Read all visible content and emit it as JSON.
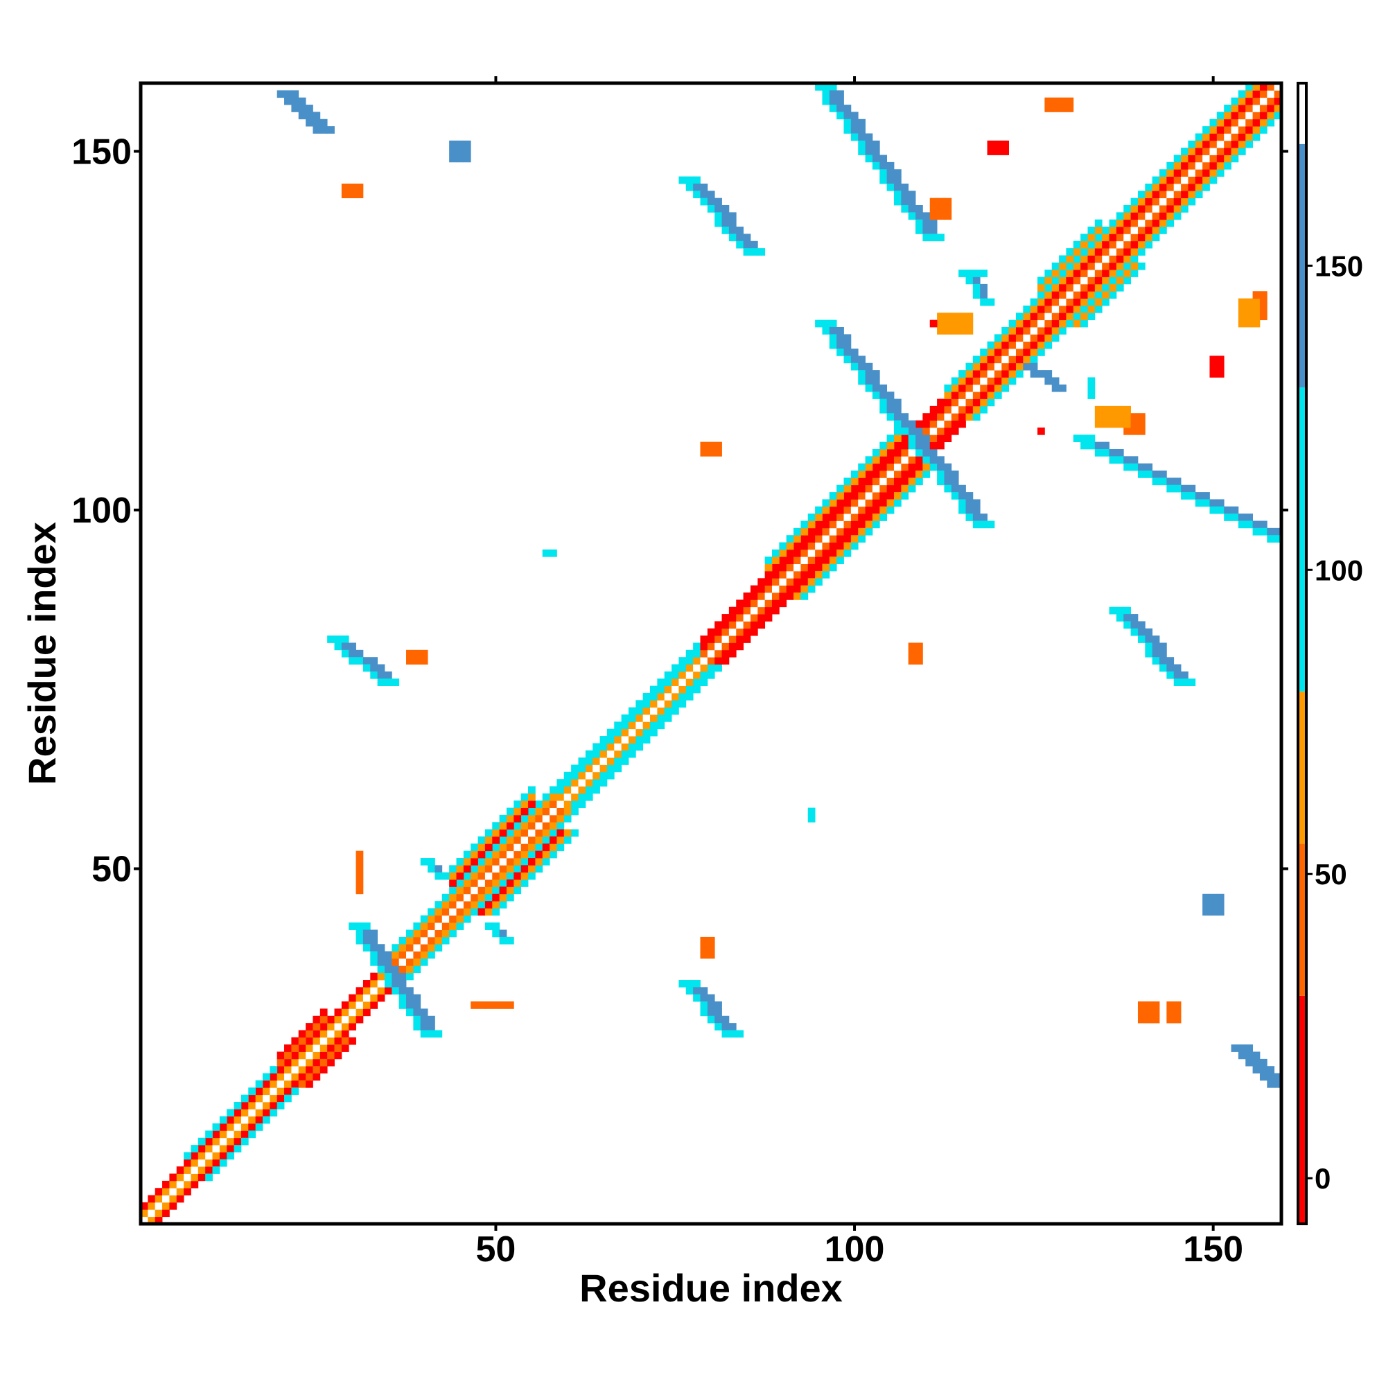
{
  "chart_data": {
    "type": "heatmap",
    "title": "",
    "xlabel": "Residue index",
    "ylabel": "Residue index",
    "xlim": [
      0.5,
      159.5
    ],
    "ylim": [
      0.5,
      159.5
    ],
    "x_ticks": [
      50,
      100,
      150
    ],
    "y_ticks": [
      50,
      100,
      150
    ],
    "colorbar": {
      "range": [
        -7.5,
        180
      ],
      "ticks": [
        0,
        50,
        100,
        150
      ],
      "bands": [
        {
          "from": -7.5,
          "to": 30,
          "color": "#ff0000"
        },
        {
          "from": 30,
          "to": 55,
          "color": "#ff6600"
        },
        {
          "from": 55,
          "to": 80,
          "color": "#ff9900"
        },
        {
          "from": 80,
          "to": 130,
          "color": "#00e5ee"
        },
        {
          "from": 130,
          "to": 170,
          "color": "#4a90c8"
        },
        {
          "from": 170,
          "to": 180,
          "color": "#ffffff"
        }
      ]
    },
    "regions": [
      {
        "kind": "diag",
        "from": 1,
        "to": 34,
        "offsets": [
          [
            0,
            "#ffffff"
          ],
          [
            1,
            "#ff9900"
          ],
          [
            2,
            "#ff0000"
          ]
        ]
      },
      {
        "kind": "diag",
        "from": 7,
        "to": 19,
        "offsets": [
          [
            3,
            "#00e5ee"
          ]
        ]
      },
      {
        "kind": "diag",
        "from": 20,
        "to": 26,
        "offsets": [
          [
            3,
            "#ff6600"
          ],
          [
            4,
            "#ff0000"
          ]
        ]
      },
      {
        "kind": "diag",
        "from": 35,
        "to": 58,
        "offsets": [
          [
            0,
            "#ffffff"
          ],
          [
            1,
            "#ff6600"
          ],
          [
            2,
            "#ff9900"
          ],
          [
            3,
            "#00e5ee"
          ]
        ]
      },
      {
        "kind": "diag",
        "from": 44,
        "to": 55,
        "offsets": [
          [
            4,
            "#ff0000"
          ],
          [
            5,
            "#ff9900"
          ],
          [
            6,
            "#00e5ee"
          ]
        ]
      },
      {
        "kind": "diag",
        "from": 59,
        "to": 78,
        "offsets": [
          [
            0,
            "#ffffff"
          ],
          [
            1,
            "#ff9900"
          ],
          [
            2,
            "#00e5ee"
          ],
          [
            3,
            "#00e5ee"
          ]
        ]
      },
      {
        "kind": "diag",
        "from": 79,
        "to": 112,
        "offsets": [
          [
            0,
            "#ffffff"
          ],
          [
            1,
            "#ff6600"
          ],
          [
            2,
            "#ff0000"
          ],
          [
            3,
            "#ff0000"
          ]
        ]
      },
      {
        "kind": "diag",
        "from": 88,
        "to": 106,
        "offsets": [
          [
            4,
            "#ff9900"
          ],
          [
            5,
            "#00e5ee"
          ]
        ]
      },
      {
        "kind": "diag",
        "from": 113,
        "to": 160,
        "offsets": [
          [
            0,
            "#ffffff"
          ],
          [
            1,
            "#ff6600"
          ],
          [
            2,
            "#ff0000"
          ],
          [
            3,
            "#ff9900"
          ],
          [
            4,
            "#00e5ee"
          ]
        ]
      },
      {
        "kind": "diag",
        "from": 126,
        "to": 134,
        "offsets": [
          [
            5,
            "#ff9900"
          ],
          [
            6,
            "#00e5ee"
          ]
        ]
      },
      {
        "kind": "anti",
        "i1": 30,
        "j1": 42,
        "i2": 40,
        "j2": 27,
        "width": 3,
        "color": "#4a90c8",
        "edge": "#00e5ee"
      },
      {
        "kind": "anti",
        "i1": 95,
        "j1": 126,
        "i2": 117,
        "j2": 98,
        "width": 3,
        "color": "#4a90c8",
        "edge": "#00e5ee"
      },
      {
        "kind": "anti",
        "i1": 131,
        "j1": 110,
        "i2": 158,
        "j2": 96,
        "width": 3,
        "color": "#4a90c8",
        "edge": "#00e5ee"
      },
      {
        "kind": "anti",
        "i1": 95,
        "j1": 159,
        "i2": 110,
        "j2": 138,
        "width": 3,
        "color": "#4a90c8",
        "edge": "#00e5ee"
      },
      {
        "kind": "anti",
        "i1": 76,
        "j1": 146,
        "i2": 85,
        "j2": 136,
        "width": 3,
        "color": "#4a90c8",
        "edge": "#00e5ee"
      },
      {
        "kind": "anti",
        "i1": 136,
        "j1": 86,
        "i2": 145,
        "j2": 76,
        "width": 3,
        "color": "#4a90c8",
        "edge": "#00e5ee"
      },
      {
        "kind": "anti",
        "i1": 27,
        "j1": 82,
        "i2": 34,
        "j2": 76,
        "width": 3,
        "color": "#4a90c8",
        "edge": "#00e5ee"
      },
      {
        "kind": "anti",
        "i1": 76,
        "j1": 34,
        "i2": 82,
        "j2": 27,
        "width": 3,
        "color": "#4a90c8",
        "edge": "#00e5ee"
      },
      {
        "kind": "anti",
        "i1": 20,
        "j1": 158,
        "i2": 25,
        "j2": 153,
        "width": 3,
        "color": "#4a90c8",
        "edge": "#4a90c8"
      },
      {
        "kind": "anti",
        "i1": 153,
        "j1": 25,
        "i2": 158,
        "j2": 20,
        "width": 3,
        "color": "#4a90c8",
        "edge": "#4a90c8"
      },
      {
        "kind": "anti",
        "i1": 115,
        "j1": 133,
        "i2": 118,
        "j2": 129,
        "width": 2,
        "color": "#4a90c8",
        "edge": "#00e5ee"
      },
      {
        "kind": "anti",
        "i1": 124,
        "j1": 120,
        "i2": 128,
        "j2": 117,
        "width": 2,
        "color": "#4a90c8",
        "edge": "#4a90c8"
      },
      {
        "kind": "anti",
        "i1": 40,
        "j1": 51,
        "i2": 42,
        "j2": 49,
        "width": 2,
        "color": "#4a90c8",
        "edge": "#00e5ee"
      },
      {
        "kind": "anti",
        "i1": 49,
        "j1": 42,
        "i2": 51,
        "j2": 40,
        "width": 2,
        "color": "#4a90c8",
        "edge": "#00e5ee"
      },
      {
        "kind": "block",
        "i1": 44,
        "i2": 46,
        "j1": 149,
        "j2": 151,
        "color": "#4a90c8"
      },
      {
        "kind": "block",
        "i1": 149,
        "i2": 151,
        "j1": 44,
        "j2": 46,
        "color": "#4a90c8"
      },
      {
        "kind": "block",
        "i1": 29,
        "i2": 31,
        "j1": 144,
        "j2": 145,
        "color": "#ff6600"
      },
      {
        "kind": "block",
        "i1": 144,
        "i2": 145,
        "j1": 29,
        "j2": 31,
        "color": "#ff6600"
      },
      {
        "kind": "block",
        "i1": 38,
        "i2": 40,
        "j1": 79,
        "j2": 80,
        "color": "#ff6600"
      },
      {
        "kind": "block",
        "i1": 79,
        "i2": 80,
        "j1": 38,
        "j2": 40,
        "color": "#ff6600"
      },
      {
        "kind": "block",
        "i1": 79,
        "i2": 81,
        "j1": 108,
        "j2": 109,
        "color": "#ff6600"
      },
      {
        "kind": "block",
        "i1": 108,
        "i2": 109,
        "j1": 79,
        "j2": 81,
        "color": "#ff6600"
      },
      {
        "kind": "block",
        "i1": 127,
        "i2": 130,
        "j1": 156,
        "j2": 157,
        "color": "#ff6600"
      },
      {
        "kind": "block",
        "i1": 156,
        "i2": 157,
        "j1": 127,
        "j2": 130,
        "color": "#ff6600"
      },
      {
        "kind": "block",
        "i1": 140,
        "i2": 142,
        "j1": 29,
        "j2": 31,
        "color": "#ff6600"
      },
      {
        "kind": "block",
        "i1": 154,
        "i2": 156,
        "j1": 126,
        "j2": 129,
        "color": "#ff9900"
      },
      {
        "kind": "block",
        "i1": 111,
        "i2": 113,
        "j1": 141,
        "j2": 143,
        "color": "#ff6600"
      },
      {
        "kind": "block",
        "i1": 138,
        "i2": 140,
        "j1": 111,
        "j2": 113,
        "color": "#ff6600"
      },
      {
        "kind": "block",
        "i1": 112,
        "i2": 116,
        "j1": 125,
        "j2": 127,
        "color": "#ff9900"
      },
      {
        "kind": "block",
        "i1": 134,
        "i2": 138,
        "j1": 112,
        "j2": 114,
        "color": "#ff9900"
      },
      {
        "kind": "block",
        "i1": 116,
        "i2": 118,
        "j1": 133,
        "j2": 133,
        "color": "#00e5ee"
      },
      {
        "kind": "block",
        "i1": 133,
        "i2": 133,
        "j1": 116,
        "j2": 118,
        "color": "#00e5ee"
      },
      {
        "kind": "block",
        "i1": 57,
        "i2": 58,
        "j1": 94,
        "j2": 94,
        "color": "#00e5ee"
      },
      {
        "kind": "block",
        "i1": 94,
        "i2": 94,
        "j1": 57,
        "j2": 58,
        "color": "#00e5ee"
      },
      {
        "kind": "block",
        "i1": 119,
        "i2": 121,
        "j1": 150,
        "j2": 151,
        "color": "#ff0000"
      },
      {
        "kind": "block",
        "i1": 150,
        "i2": 151,
        "j1": 119,
        "j2": 121,
        "color": "#ff0000"
      },
      {
        "kind": "block",
        "i1": 126,
        "i2": 126,
        "j1": 111,
        "j2": 111,
        "color": "#ff0000"
      },
      {
        "kind": "block",
        "i1": 111,
        "i2": 111,
        "j1": 126,
        "j2": 126,
        "color": "#ff0000"
      },
      {
        "kind": "block",
        "i1": 31,
        "i2": 31,
        "j1": 50,
        "j2": 52,
        "color": "#ff6600"
      },
      {
        "kind": "block",
        "i1": 50,
        "i2": 52,
        "j1": 31,
        "j2": 31,
        "color": "#ff6600"
      },
      {
        "kind": "block",
        "i1": 47,
        "i2": 49,
        "j1": 31,
        "j2": 31,
        "color": "#ff6600"
      },
      {
        "kind": "block",
        "i1": 31,
        "i2": 31,
        "j1": 47,
        "j2": 49,
        "color": "#ff6600"
      }
    ]
  }
}
